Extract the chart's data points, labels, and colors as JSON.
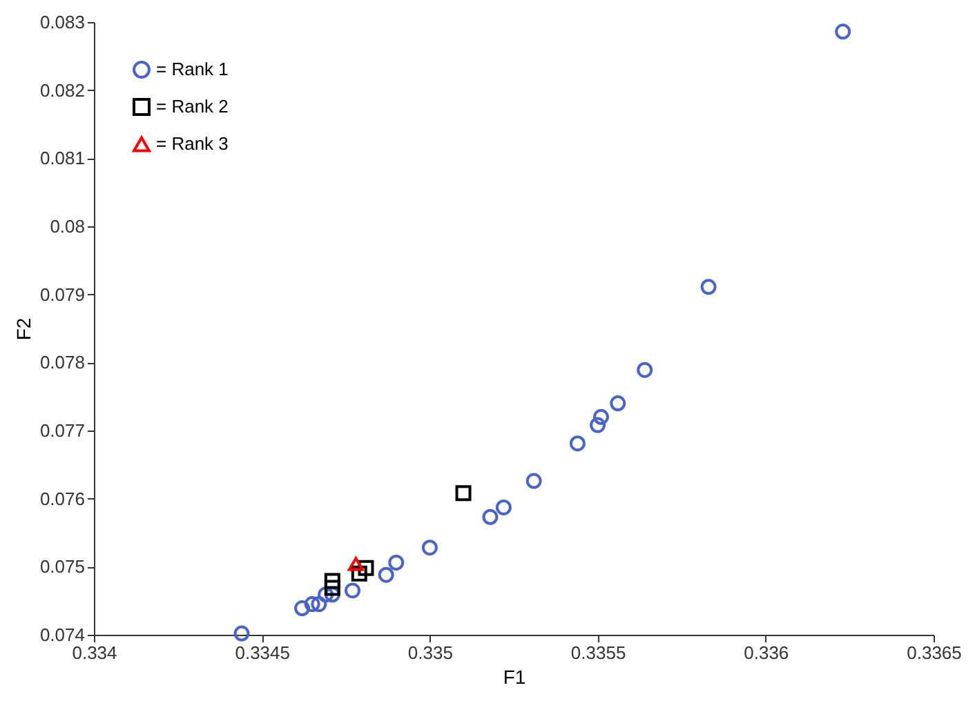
{
  "chart_data": {
    "type": "scatter",
    "xlabel": "F1",
    "ylabel": "F2",
    "xlim": [
      0.334,
      0.3365
    ],
    "xticks": [
      0.334,
      0.3345,
      0.335,
      0.3355,
      0.336,
      0.3365
    ],
    "ylim": [
      0.074,
      0.083
    ],
    "yticks": [
      0.074,
      0.075,
      0.076,
      0.077,
      0.078,
      0.079,
      0.08,
      0.081,
      0.082,
      0.083
    ],
    "grid": false,
    "legend": "top left",
    "series": [
      {
        "name": "= Rank 1",
        "color": "#4a63c8",
        "marker": "circle",
        "x": [
          0.33444,
          0.33462,
          0.33465,
          0.33467,
          0.33469,
          0.33471,
          0.33477,
          0.33487,
          0.3349,
          0.335,
          0.33518,
          0.33522,
          0.33531,
          0.33544,
          0.3355,
          0.33551,
          0.33556,
          0.33564,
          0.33583,
          0.33623
        ],
        "values": [
          0.07402,
          0.07439,
          0.07445,
          0.07445,
          0.07459,
          0.07459,
          0.07465,
          0.07488,
          0.07506,
          0.07528,
          0.07573,
          0.07587,
          0.07626,
          0.07681,
          0.07708,
          0.0772,
          0.0774,
          0.07789,
          0.07911,
          0.08286
        ]
      },
      {
        "name": "= Rank 2",
        "color": "#000000",
        "marker": "square",
        "x": [
          0.33471,
          0.33471,
          0.33479,
          0.33481,
          0.3351
        ],
        "values": [
          0.07469,
          0.07479,
          0.0749,
          0.07498,
          0.07608
        ]
      },
      {
        "name": "= Rank 3",
        "color": "#ff0000",
        "marker": "triangle",
        "x": [
          0.33478
        ],
        "values": [
          0.07504
        ]
      }
    ]
  }
}
